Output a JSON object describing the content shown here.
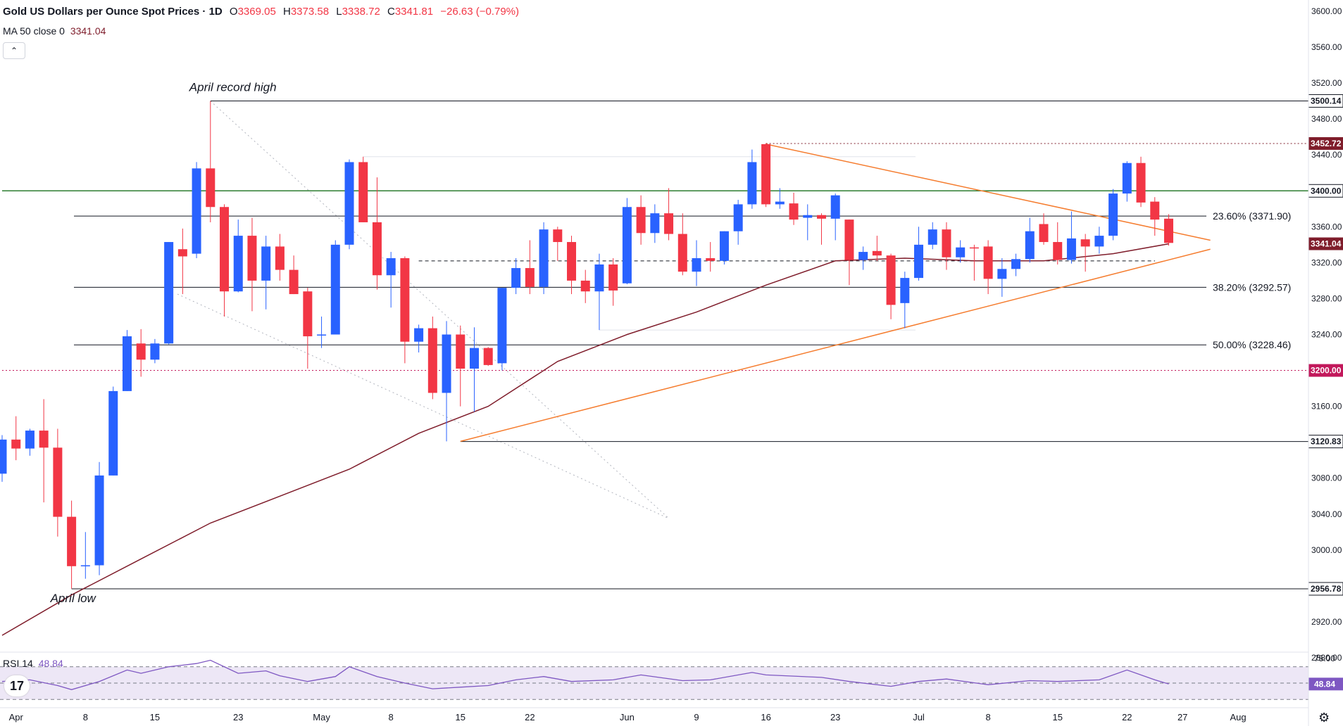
{
  "header": {
    "title": "Gold US Dollars per Ounce Spot Prices · 1D",
    "o_label": "O",
    "o_value": "3369.05",
    "h_label": "H",
    "h_value": "3373.58",
    "l_label": "L",
    "l_value": "3338.72",
    "c_label": "C",
    "c_value": "3341.81",
    "change": "−26.63 (−0.79%)"
  },
  "ma_indicator": {
    "label": "MA 50 close 0",
    "value": "3341.04"
  },
  "rsi_indicator": {
    "label": "RSI 14",
    "value": "48.84"
  },
  "collapse_icon": "chevron-up-icon",
  "colors": {
    "up": "#2962ff",
    "down": "#f23645",
    "ma": "#7f1d2b",
    "trendline": "#f57c2e",
    "support": "#2e7d32",
    "rsi": "#7e57c2",
    "rsi_band": "#ede7f6",
    "level_red": "#c2185b"
  },
  "chart_data": {
    "type": "candlestick",
    "title": "Gold US Dollars per Ounce Spot Prices · 1D",
    "y_range": [
      2870,
      3610
    ],
    "y_ticks": [
      "3600.00",
      "3560.00",
      "3520.00",
      "3480.00",
      "3440.00",
      "3400.00",
      "3360.00",
      "3320.00",
      "3280.00",
      "3240.00",
      "3200.00",
      "3160.00",
      "3120.00",
      "3080.00",
      "3040.00",
      "3000.00",
      "2960.00",
      "2920.00",
      "2880.00"
    ],
    "x_ticks": [
      {
        "label": "Apr",
        "date": "2025-04-01"
      },
      {
        "label": "8",
        "date": "2025-04-08"
      },
      {
        "label": "15",
        "date": "2025-04-15"
      },
      {
        "label": "23",
        "date": "2025-04-23"
      },
      {
        "label": "May",
        "date": "2025-05-01"
      },
      {
        "label": "8",
        "date": "2025-05-08"
      },
      {
        "label": "15",
        "date": "2025-05-15"
      },
      {
        "label": "22",
        "date": "2025-05-22"
      },
      {
        "label": "Jun",
        "date": "2025-06-02"
      },
      {
        "label": "9",
        "date": "2025-06-09"
      },
      {
        "label": "16",
        "date": "2025-06-16"
      },
      {
        "label": "23",
        "date": "2025-06-23"
      },
      {
        "label": "Jul",
        "date": "2025-07-01"
      },
      {
        "label": "8",
        "date": "2025-07-08"
      },
      {
        "label": "15",
        "date": "2025-07-15"
      },
      {
        "label": "22",
        "date": "2025-07-22"
      },
      {
        "label": "27",
        "date": "2025-07-27"
      },
      {
        "label": "Aug",
        "date": "2025-08-01"
      }
    ],
    "candles": [
      {
        "date": "2025-03-31",
        "o": 3085,
        "h": 3128,
        "l": 3076,
        "c": 3123
      },
      {
        "date": "2025-04-01",
        "o": 3123,
        "h": 3149,
        "l": 3100,
        "c": 3113
      },
      {
        "date": "2025-04-02",
        "o": 3113,
        "h": 3135,
        "l": 3105,
        "c": 3133
      },
      {
        "date": "2025-04-03",
        "o": 3133,
        "h": 3168,
        "l": 3053,
        "c": 3114
      },
      {
        "date": "2025-04-04",
        "o": 3114,
        "h": 3135,
        "l": 3015,
        "c": 3037
      },
      {
        "date": "2025-04-07",
        "o": 3037,
        "h": 3055,
        "l": 2957,
        "c": 2982
      },
      {
        "date": "2025-04-08",
        "o": 2982,
        "h": 3020,
        "l": 2968,
        "c": 2983
      },
      {
        "date": "2025-04-09",
        "o": 2983,
        "h": 3098,
        "l": 2972,
        "c": 3083
      },
      {
        "date": "2025-04-10",
        "o": 3083,
        "h": 3182,
        "l": 3083,
        "c": 3177
      },
      {
        "date": "2025-04-11",
        "o": 3177,
        "h": 3245,
        "l": 3177,
        "c": 3238
      },
      {
        "date": "2025-04-14",
        "o": 3230,
        "h": 3246,
        "l": 3193,
        "c": 3212
      },
      {
        "date": "2025-04-15",
        "o": 3212,
        "h": 3235,
        "l": 3208,
        "c": 3230
      },
      {
        "date": "2025-04-16",
        "o": 3230,
        "h": 3343,
        "l": 3229,
        "c": 3343
      },
      {
        "date": "2025-04-17",
        "o": 3335,
        "h": 3358,
        "l": 3285,
        "c": 3327
      },
      {
        "date": "2025-04-18",
        "o": 3330,
        "h": 3432,
        "l": 3325,
        "c": 3425
      },
      {
        "date": "2025-04-21",
        "o": 3425,
        "h": 3500,
        "l": 3365,
        "c": 3382
      },
      {
        "date": "2025-04-22",
        "o": 3382,
        "h": 3385,
        "l": 3260,
        "c": 3288
      },
      {
        "date": "2025-04-23",
        "o": 3288,
        "h": 3368,
        "l": 3287,
        "c": 3350
      },
      {
        "date": "2025-04-24",
        "o": 3350,
        "h": 3370,
        "l": 3266,
        "c": 3300
      },
      {
        "date": "2025-04-25",
        "o": 3300,
        "h": 3350,
        "l": 3268,
        "c": 3338
      },
      {
        "date": "2025-04-28",
        "o": 3338,
        "h": 3352,
        "l": 3300,
        "c": 3312
      },
      {
        "date": "2025-04-29",
        "o": 3312,
        "h": 3328,
        "l": 3285,
        "c": 3285
      },
      {
        "date": "2025-04-30",
        "o": 3288,
        "h": 3292,
        "l": 3202,
        "c": 3238
      },
      {
        "date": "2025-05-01",
        "o": 3240,
        "h": 3260,
        "l": 3225,
        "c": 3240
      },
      {
        "date": "2025-05-02",
        "o": 3240,
        "h": 3345,
        "l": 3240,
        "c": 3340
      },
      {
        "date": "2025-05-05",
        "o": 3340,
        "h": 3435,
        "l": 3335,
        "c": 3432
      },
      {
        "date": "2025-05-06",
        "o": 3432,
        "h": 3438,
        "l": 3365,
        "c": 3365
      },
      {
        "date": "2025-05-07",
        "o": 3365,
        "h": 3415,
        "l": 3290,
        "c": 3306
      },
      {
        "date": "2025-05-08",
        "o": 3306,
        "h": 3332,
        "l": 3270,
        "c": 3325
      },
      {
        "date": "2025-05-09",
        "o": 3325,
        "h": 3327,
        "l": 3208,
        "c": 3232
      },
      {
        "date": "2025-05-12",
        "o": 3232,
        "h": 3251,
        "l": 3220,
        "c": 3247
      },
      {
        "date": "2025-05-13",
        "o": 3247,
        "h": 3260,
        "l": 3168,
        "c": 3175
      },
      {
        "date": "2025-05-14",
        "o": 3175,
        "h": 3255,
        "l": 3121,
        "c": 3240
      },
      {
        "date": "2025-05-15",
        "o": 3240,
        "h": 3250,
        "l": 3160,
        "c": 3202
      },
      {
        "date": "2025-05-16",
        "o": 3202,
        "h": 3248,
        "l": 3154,
        "c": 3225
      },
      {
        "date": "2025-05-19",
        "o": 3225,
        "h": 3226,
        "l": 3205,
        "c": 3206
      },
      {
        "date": "2025-05-20",
        "o": 3208,
        "h": 3292,
        "l": 3200,
        "c": 3292
      },
      {
        "date": "2025-05-21",
        "o": 3292,
        "h": 3325,
        "l": 3285,
        "c": 3314
      },
      {
        "date": "2025-05-22",
        "o": 3314,
        "h": 3345,
        "l": 3285,
        "c": 3293
      },
      {
        "date": "2025-05-23",
        "o": 3293,
        "h": 3365,
        "l": 3285,
        "c": 3357
      },
      {
        "date": "2025-05-26",
        "o": 3357,
        "h": 3360,
        "l": 3322,
        "c": 3343
      },
      {
        "date": "2025-05-27",
        "o": 3343,
        "h": 3350,
        "l": 3285,
        "c": 3300
      },
      {
        "date": "2025-05-28",
        "o": 3300,
        "h": 3312,
        "l": 3275,
        "c": 3288
      },
      {
        "date": "2025-05-29",
        "o": 3288,
        "h": 3330,
        "l": 3245,
        "c": 3318
      },
      {
        "date": "2025-05-30",
        "o": 3318,
        "h": 3325,
        "l": 3272,
        "c": 3289
      },
      {
        "date": "2025-06-02",
        "o": 3297,
        "h": 3392,
        "l": 3296,
        "c": 3382
      },
      {
        "date": "2025-06-03",
        "o": 3382,
        "h": 3395,
        "l": 3340,
        "c": 3353
      },
      {
        "date": "2025-06-04",
        "o": 3353,
        "h": 3385,
        "l": 3342,
        "c": 3375
      },
      {
        "date": "2025-06-05",
        "o": 3375,
        "h": 3403,
        "l": 3345,
        "c": 3352
      },
      {
        "date": "2025-06-06",
        "o": 3352,
        "h": 3375,
        "l": 3306,
        "c": 3310
      },
      {
        "date": "2025-06-09",
        "o": 3310,
        "h": 3345,
        "l": 3294,
        "c": 3325
      },
      {
        "date": "2025-06-10",
        "o": 3325,
        "h": 3343,
        "l": 3310,
        "c": 3322
      },
      {
        "date": "2025-06-11",
        "o": 3322,
        "h": 3355,
        "l": 3318,
        "c": 3355
      },
      {
        "date": "2025-06-12",
        "o": 3355,
        "h": 3390,
        "l": 3340,
        "c": 3385
      },
      {
        "date": "2025-06-13",
        "o": 3385,
        "h": 3446,
        "l": 3380,
        "c": 3432
      },
      {
        "date": "2025-06-16",
        "o": 3452,
        "h": 3453,
        "l": 3382,
        "c": 3385
      },
      {
        "date": "2025-06-17",
        "o": 3385,
        "h": 3403,
        "l": 3380,
        "c": 3388
      },
      {
        "date": "2025-06-18",
        "o": 3386,
        "h": 3398,
        "l": 3362,
        "c": 3368
      },
      {
        "date": "2025-06-19",
        "o": 3370,
        "h": 3385,
        "l": 3345,
        "c": 3373
      },
      {
        "date": "2025-06-20",
        "o": 3373,
        "h": 3375,
        "l": 3340,
        "c": 3369
      },
      {
        "date": "2025-06-23",
        "o": 3369,
        "h": 3397,
        "l": 3345,
        "c": 3395
      },
      {
        "date": "2025-06-24",
        "o": 3368,
        "h": 3368,
        "l": 3295,
        "c": 3323
      },
      {
        "date": "2025-06-25",
        "o": 3323,
        "h": 3338,
        "l": 3312,
        "c": 3332
      },
      {
        "date": "2025-06-26",
        "o": 3333,
        "h": 3350,
        "l": 3322,
        "c": 3328
      },
      {
        "date": "2025-06-27",
        "o": 3328,
        "h": 3330,
        "l": 3257,
        "c": 3273
      },
      {
        "date": "2025-06-30",
        "o": 3275,
        "h": 3310,
        "l": 3247,
        "c": 3303
      },
      {
        "date": "2025-07-01",
        "o": 3303,
        "h": 3360,
        "l": 3300,
        "c": 3340
      },
      {
        "date": "2025-07-02",
        "o": 3340,
        "h": 3365,
        "l": 3335,
        "c": 3357
      },
      {
        "date": "2025-07-03",
        "o": 3357,
        "h": 3365,
        "l": 3312,
        "c": 3326
      },
      {
        "date": "2025-07-04",
        "o": 3326,
        "h": 3345,
        "l": 3320,
        "c": 3337
      },
      {
        "date": "2025-07-07",
        "o": 3337,
        "h": 3340,
        "l": 3300,
        "c": 3336
      },
      {
        "date": "2025-07-08",
        "o": 3338,
        "h": 3345,
        "l": 3285,
        "c": 3302
      },
      {
        "date": "2025-07-09",
        "o": 3302,
        "h": 3325,
        "l": 3282,
        "c": 3313
      },
      {
        "date": "2025-07-10",
        "o": 3313,
        "h": 3330,
        "l": 3305,
        "c": 3324
      },
      {
        "date": "2025-07-11",
        "o": 3324,
        "h": 3370,
        "l": 3320,
        "c": 3355
      },
      {
        "date": "2025-07-14",
        "o": 3363,
        "h": 3375,
        "l": 3340,
        "c": 3343
      },
      {
        "date": "2025-07-15",
        "o": 3343,
        "h": 3365,
        "l": 3318,
        "c": 3323
      },
      {
        "date": "2025-07-16",
        "o": 3323,
        "h": 3377,
        "l": 3319,
        "c": 3347
      },
      {
        "date": "2025-07-17",
        "o": 3346,
        "h": 3352,
        "l": 3310,
        "c": 3338
      },
      {
        "date": "2025-07-18",
        "o": 3338,
        "h": 3360,
        "l": 3330,
        "c": 3350
      },
      {
        "date": "2025-07-21",
        "o": 3350,
        "h": 3402,
        "l": 3345,
        "c": 3397
      },
      {
        "date": "2025-07-22",
        "o": 3397,
        "h": 3433,
        "l": 3388,
        "c": 3431
      },
      {
        "date": "2025-07-23",
        "o": 3431,
        "h": 3438,
        "l": 3382,
        "c": 3387
      },
      {
        "date": "2025-07-24",
        "o": 3388,
        "h": 3393,
        "l": 3350,
        "c": 3368
      },
      {
        "date": "2025-07-25",
        "o": 3369,
        "h": 3374,
        "l": 3339,
        "c": 3342
      }
    ],
    "ma50": [
      {
        "date": "2025-03-31",
        "v": 2905
      },
      {
        "date": "2025-04-07",
        "v": 2950
      },
      {
        "date": "2025-04-14",
        "v": 2990
      },
      {
        "date": "2025-04-21",
        "v": 3030
      },
      {
        "date": "2025-04-28",
        "v": 3060
      },
      {
        "date": "2025-05-05",
        "v": 3090
      },
      {
        "date": "2025-05-12",
        "v": 3130
      },
      {
        "date": "2025-05-19",
        "v": 3160
      },
      {
        "date": "2025-05-26",
        "v": 3210
      },
      {
        "date": "2025-06-02",
        "v": 3240
      },
      {
        "date": "2025-06-09",
        "v": 3265
      },
      {
        "date": "2025-06-16",
        "v": 3295
      },
      {
        "date": "2025-06-23",
        "v": 3322
      },
      {
        "date": "2025-06-30",
        "v": 3325
      },
      {
        "date": "2025-07-07",
        "v": 3322
      },
      {
        "date": "2025-07-14",
        "v": 3322
      },
      {
        "date": "2025-07-21",
        "v": 3330
      },
      {
        "date": "2025-07-25",
        "v": 3341
      }
    ],
    "horizontal_levels": [
      {
        "value": 3500.14,
        "label": "3500.14",
        "style": "solid",
        "color": "#131722",
        "x_start": "2025-04-21"
      },
      {
        "value": 3452.72,
        "label": "3452.72",
        "style": "dotted",
        "color": "#7f1d2b",
        "x_start": "2025-06-16"
      },
      {
        "value": 3400.0,
        "label": "3400.00",
        "style": "solid",
        "color": "#2e7d32",
        "x_start": "2025-03-31"
      },
      {
        "value": 3200.0,
        "label": "3200.00",
        "style": "dotted",
        "color": "#c2185b",
        "x_start": "2025-03-31"
      },
      {
        "value": 3120.83,
        "label": "3120.83",
        "style": "solid",
        "color": "#131722",
        "x_start": "2025-05-15"
      },
      {
        "value": 2956.78,
        "label": "2956.78",
        "style": "solid",
        "color": "#131722",
        "x_start": "2025-04-07"
      },
      {
        "value": 3322,
        "label": "",
        "style": "dashed",
        "color": "#131722",
        "x_start": "2025-05-12"
      }
    ],
    "fib_levels": [
      {
        "value": 3371.9,
        "label": "23.60% (3371.90)"
      },
      {
        "value": 3292.57,
        "label": "38.20% (3292.57)"
      },
      {
        "value": 3228.46,
        "label": "50.00% (3228.46)"
      }
    ],
    "trendlines": [
      {
        "from": {
          "date": "2025-06-16",
          "v": 3452
        },
        "to": {
          "date": "2025-07-30",
          "v": 3345
        },
        "color": "#f57c2e"
      },
      {
        "from": {
          "date": "2025-05-15",
          "v": 3121
        },
        "to": {
          "date": "2025-07-30",
          "v": 3335
        },
        "color": "#f57c2e"
      }
    ],
    "price_label": {
      "value": 3341.04,
      "label": "3341.04"
    },
    "annotations": [
      {
        "text": "April record high",
        "date": "2025-04-21",
        "v": 3500
      },
      {
        "text": "April low",
        "date": "2025-04-07",
        "v": 2956
      }
    ],
    "rsi": {
      "y_range": [
        20,
        80
      ],
      "ticks": [
        "75.00"
      ],
      "overbought": 70,
      "midline": 50,
      "oversold": 30,
      "current": "48.84",
      "values": [
        {
          "date": "2025-03-31",
          "v": 52
        },
        {
          "date": "2025-04-02",
          "v": 54
        },
        {
          "date": "2025-04-04",
          "v": 47
        },
        {
          "date": "2025-04-07",
          "v": 42
        },
        {
          "date": "2025-04-09",
          "v": 52
        },
        {
          "date": "2025-04-11",
          "v": 66
        },
        {
          "date": "2025-04-14",
          "v": 62
        },
        {
          "date": "2025-04-16",
          "v": 70
        },
        {
          "date": "2025-04-18",
          "v": 74
        },
        {
          "date": "2025-04-21",
          "v": 78
        },
        {
          "date": "2025-04-23",
          "v": 62
        },
        {
          "date": "2025-04-25",
          "v": 65
        },
        {
          "date": "2025-04-28",
          "v": 59
        },
        {
          "date": "2025-04-30",
          "v": 52
        },
        {
          "date": "2025-05-02",
          "v": 58
        },
        {
          "date": "2025-05-05",
          "v": 70
        },
        {
          "date": "2025-05-07",
          "v": 58
        },
        {
          "date": "2025-05-09",
          "v": 50
        },
        {
          "date": "2025-05-13",
          "v": 43
        },
        {
          "date": "2025-05-15",
          "v": 45
        },
        {
          "date": "2025-05-19",
          "v": 47
        },
        {
          "date": "2025-05-21",
          "v": 54
        },
        {
          "date": "2025-05-23",
          "v": 58
        },
        {
          "date": "2025-05-27",
          "v": 52
        },
        {
          "date": "2025-05-30",
          "v": 54
        },
        {
          "date": "2025-06-03",
          "v": 60
        },
        {
          "date": "2025-06-06",
          "v": 53
        },
        {
          "date": "2025-06-10",
          "v": 54
        },
        {
          "date": "2025-06-13",
          "v": 63
        },
        {
          "date": "2025-06-16",
          "v": 60
        },
        {
          "date": "2025-06-20",
          "v": 57
        },
        {
          "date": "2025-06-24",
          "v": 52
        },
        {
          "date": "2025-06-27",
          "v": 46
        },
        {
          "date": "2025-07-01",
          "v": 52
        },
        {
          "date": "2025-07-03",
          "v": 55
        },
        {
          "date": "2025-07-08",
          "v": 48
        },
        {
          "date": "2025-07-11",
          "v": 53
        },
        {
          "date": "2025-07-15",
          "v": 52
        },
        {
          "date": "2025-07-18",
          "v": 54
        },
        {
          "date": "2025-07-22",
          "v": 66
        },
        {
          "date": "2025-07-24",
          "v": 54
        },
        {
          "date": "2025-07-25",
          "v": 48.84
        }
      ]
    }
  }
}
